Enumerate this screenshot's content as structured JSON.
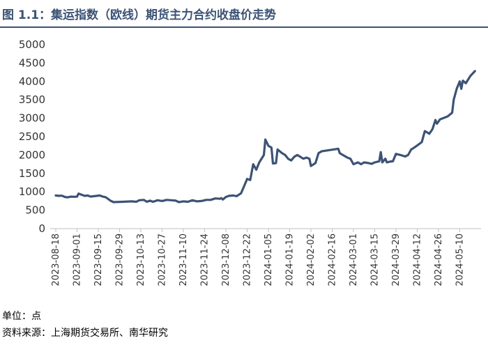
{
  "figure": {
    "number": "图 1.1",
    "title": "集运指数（欧线）期货主力合约收盘价走势"
  },
  "footer": {
    "unit": "单位：点",
    "source": "资料来源：上海期货交易所、南华研究"
  },
  "colors": {
    "title": "#3c5375",
    "line": "#3c5375",
    "axis": "#bfbfbf"
  },
  "chart_data": {
    "type": "line",
    "title": "集运指数（欧线）期货主力合约收盘价走势",
    "xlabel": "",
    "ylabel": "",
    "ylim": [
      0,
      5000
    ],
    "yticks": [
      0,
      500,
      1000,
      1500,
      2000,
      2500,
      3000,
      3500,
      4000,
      4500,
      5000
    ],
    "xticks": [
      "2023-08-18",
      "2023-09-01",
      "2023-09-15",
      "2023-09-29",
      "2023-10-13",
      "2023-10-27",
      "2023-11-10",
      "2023-11-24",
      "2023-12-08",
      "2023-12-22",
      "2024-01-05",
      "2024-01-19",
      "2024-02-02",
      "2024-02-16",
      "2024-03-01",
      "2024-03-15",
      "2024-03-29",
      "2024-04-12",
      "2024-04-26",
      "2024-05-10"
    ],
    "xlim": [
      "2023-08-18",
      "2024-05-24"
    ],
    "grid": false,
    "legend": "none",
    "series": [
      {
        "points": [
          [
            "2023-08-18",
            900
          ],
          [
            "2023-08-20",
            890
          ],
          [
            "2023-08-22",
            895
          ],
          [
            "2023-08-24",
            860
          ],
          [
            "2023-08-26",
            850
          ],
          [
            "2023-08-28",
            870
          ],
          [
            "2023-08-30",
            865
          ],
          [
            "2023-09-01",
            870
          ],
          [
            "2023-09-02",
            950
          ],
          [
            "2023-09-04",
            920
          ],
          [
            "2023-09-06",
            890
          ],
          [
            "2023-09-08",
            900
          ],
          [
            "2023-09-10",
            870
          ],
          [
            "2023-09-12",
            880
          ],
          [
            "2023-09-14",
            890
          ],
          [
            "2023-09-16",
            900
          ],
          [
            "2023-09-18",
            870
          ],
          [
            "2023-09-20",
            850
          ],
          [
            "2023-09-23",
            760
          ],
          [
            "2023-09-25",
            720
          ],
          [
            "2023-10-01",
            730
          ],
          [
            "2023-10-07",
            740
          ],
          [
            "2023-10-10",
            730
          ],
          [
            "2023-10-12",
            770
          ],
          [
            "2023-10-15",
            780
          ],
          [
            "2023-10-17",
            730
          ],
          [
            "2023-10-19",
            760
          ],
          [
            "2023-10-21",
            730
          ],
          [
            "2023-10-24",
            770
          ],
          [
            "2023-10-27",
            750
          ],
          [
            "2023-10-30",
            780
          ],
          [
            "2023-11-02",
            770
          ],
          [
            "2023-11-05",
            760
          ],
          [
            "2023-11-07",
            720
          ],
          [
            "2023-11-10",
            740
          ],
          [
            "2023-11-13",
            730
          ],
          [
            "2023-11-16",
            770
          ],
          [
            "2023-11-19",
            740
          ],
          [
            "2023-11-22",
            750
          ],
          [
            "2023-11-25",
            780
          ],
          [
            "2023-11-28",
            780
          ],
          [
            "2023-12-01",
            820
          ],
          [
            "2023-12-04",
            810
          ],
          [
            "2023-12-05",
            830
          ],
          [
            "2023-12-06",
            790
          ],
          [
            "2023-12-08",
            860
          ],
          [
            "2023-12-10",
            890
          ],
          [
            "2023-12-13",
            900
          ],
          [
            "2023-12-15",
            880
          ],
          [
            "2023-12-18",
            960
          ],
          [
            "2023-12-20",
            1150
          ],
          [
            "2023-12-22",
            1350
          ],
          [
            "2023-12-24",
            1320
          ],
          [
            "2023-12-26",
            1750
          ],
          [
            "2023-12-28",
            1600
          ],
          [
            "2023-12-30",
            1800
          ],
          [
            "2024-01-02",
            2000
          ],
          [
            "2024-01-03",
            2420
          ],
          [
            "2024-01-05",
            2250
          ],
          [
            "2024-01-07",
            2200
          ],
          [
            "2024-01-08",
            1770
          ],
          [
            "2024-01-10",
            1780
          ],
          [
            "2024-01-11",
            2150
          ],
          [
            "2024-01-14",
            2050
          ],
          [
            "2024-01-16",
            2000
          ],
          [
            "2024-01-18",
            1900
          ],
          [
            "2024-01-20",
            1850
          ],
          [
            "2024-01-22",
            1950
          ],
          [
            "2024-01-24",
            2000
          ],
          [
            "2024-01-26",
            1950
          ],
          [
            "2024-01-28",
            1900
          ],
          [
            "2024-01-30",
            1930
          ],
          [
            "2024-02-01",
            1900
          ],
          [
            "2024-02-02",
            1700
          ],
          [
            "2024-02-05",
            1780
          ],
          [
            "2024-02-07",
            2050
          ],
          [
            "2024-02-09",
            2100
          ],
          [
            "2024-02-20",
            2170
          ],
          [
            "2024-02-21",
            2050
          ],
          [
            "2024-02-23",
            2000
          ],
          [
            "2024-02-26",
            1930
          ],
          [
            "2024-02-28",
            1900
          ],
          [
            "2024-03-01",
            1750
          ],
          [
            "2024-03-04",
            1800
          ],
          [
            "2024-03-06",
            1750
          ],
          [
            "2024-03-08",
            1800
          ],
          [
            "2024-03-11",
            1780
          ],
          [
            "2024-03-13",
            1760
          ],
          [
            "2024-03-15",
            1800
          ],
          [
            "2024-03-18",
            1830
          ],
          [
            "2024-03-19",
            2080
          ],
          [
            "2024-03-20",
            1800
          ],
          [
            "2024-03-22",
            1900
          ],
          [
            "2024-03-23",
            1800
          ],
          [
            "2024-03-25",
            1820
          ],
          [
            "2024-03-27",
            1830
          ],
          [
            "2024-03-29",
            2030
          ],
          [
            "2024-04-01",
            2000
          ],
          [
            "2024-04-04",
            1960
          ],
          [
            "2024-04-06",
            2000
          ],
          [
            "2024-04-08",
            2150
          ],
          [
            "2024-04-10",
            2200
          ],
          [
            "2024-04-12",
            2260
          ],
          [
            "2024-04-15",
            2350
          ],
          [
            "2024-04-17",
            2650
          ],
          [
            "2024-04-20",
            2580
          ],
          [
            "2024-04-22",
            2700
          ],
          [
            "2024-04-24",
            2950
          ],
          [
            "2024-04-25",
            2850
          ],
          [
            "2024-04-27",
            2970
          ],
          [
            "2024-04-29",
            3000
          ],
          [
            "2024-05-02",
            3050
          ],
          [
            "2024-05-05",
            3150
          ],
          [
            "2024-05-06",
            3500
          ],
          [
            "2024-05-08",
            3800
          ],
          [
            "2024-05-10",
            4000
          ],
          [
            "2024-05-11",
            3800
          ],
          [
            "2024-05-12",
            4020
          ],
          [
            "2024-05-14",
            3950
          ],
          [
            "2024-05-17",
            4150
          ],
          [
            "2024-05-20",
            4280
          ]
        ]
      }
    ]
  }
}
